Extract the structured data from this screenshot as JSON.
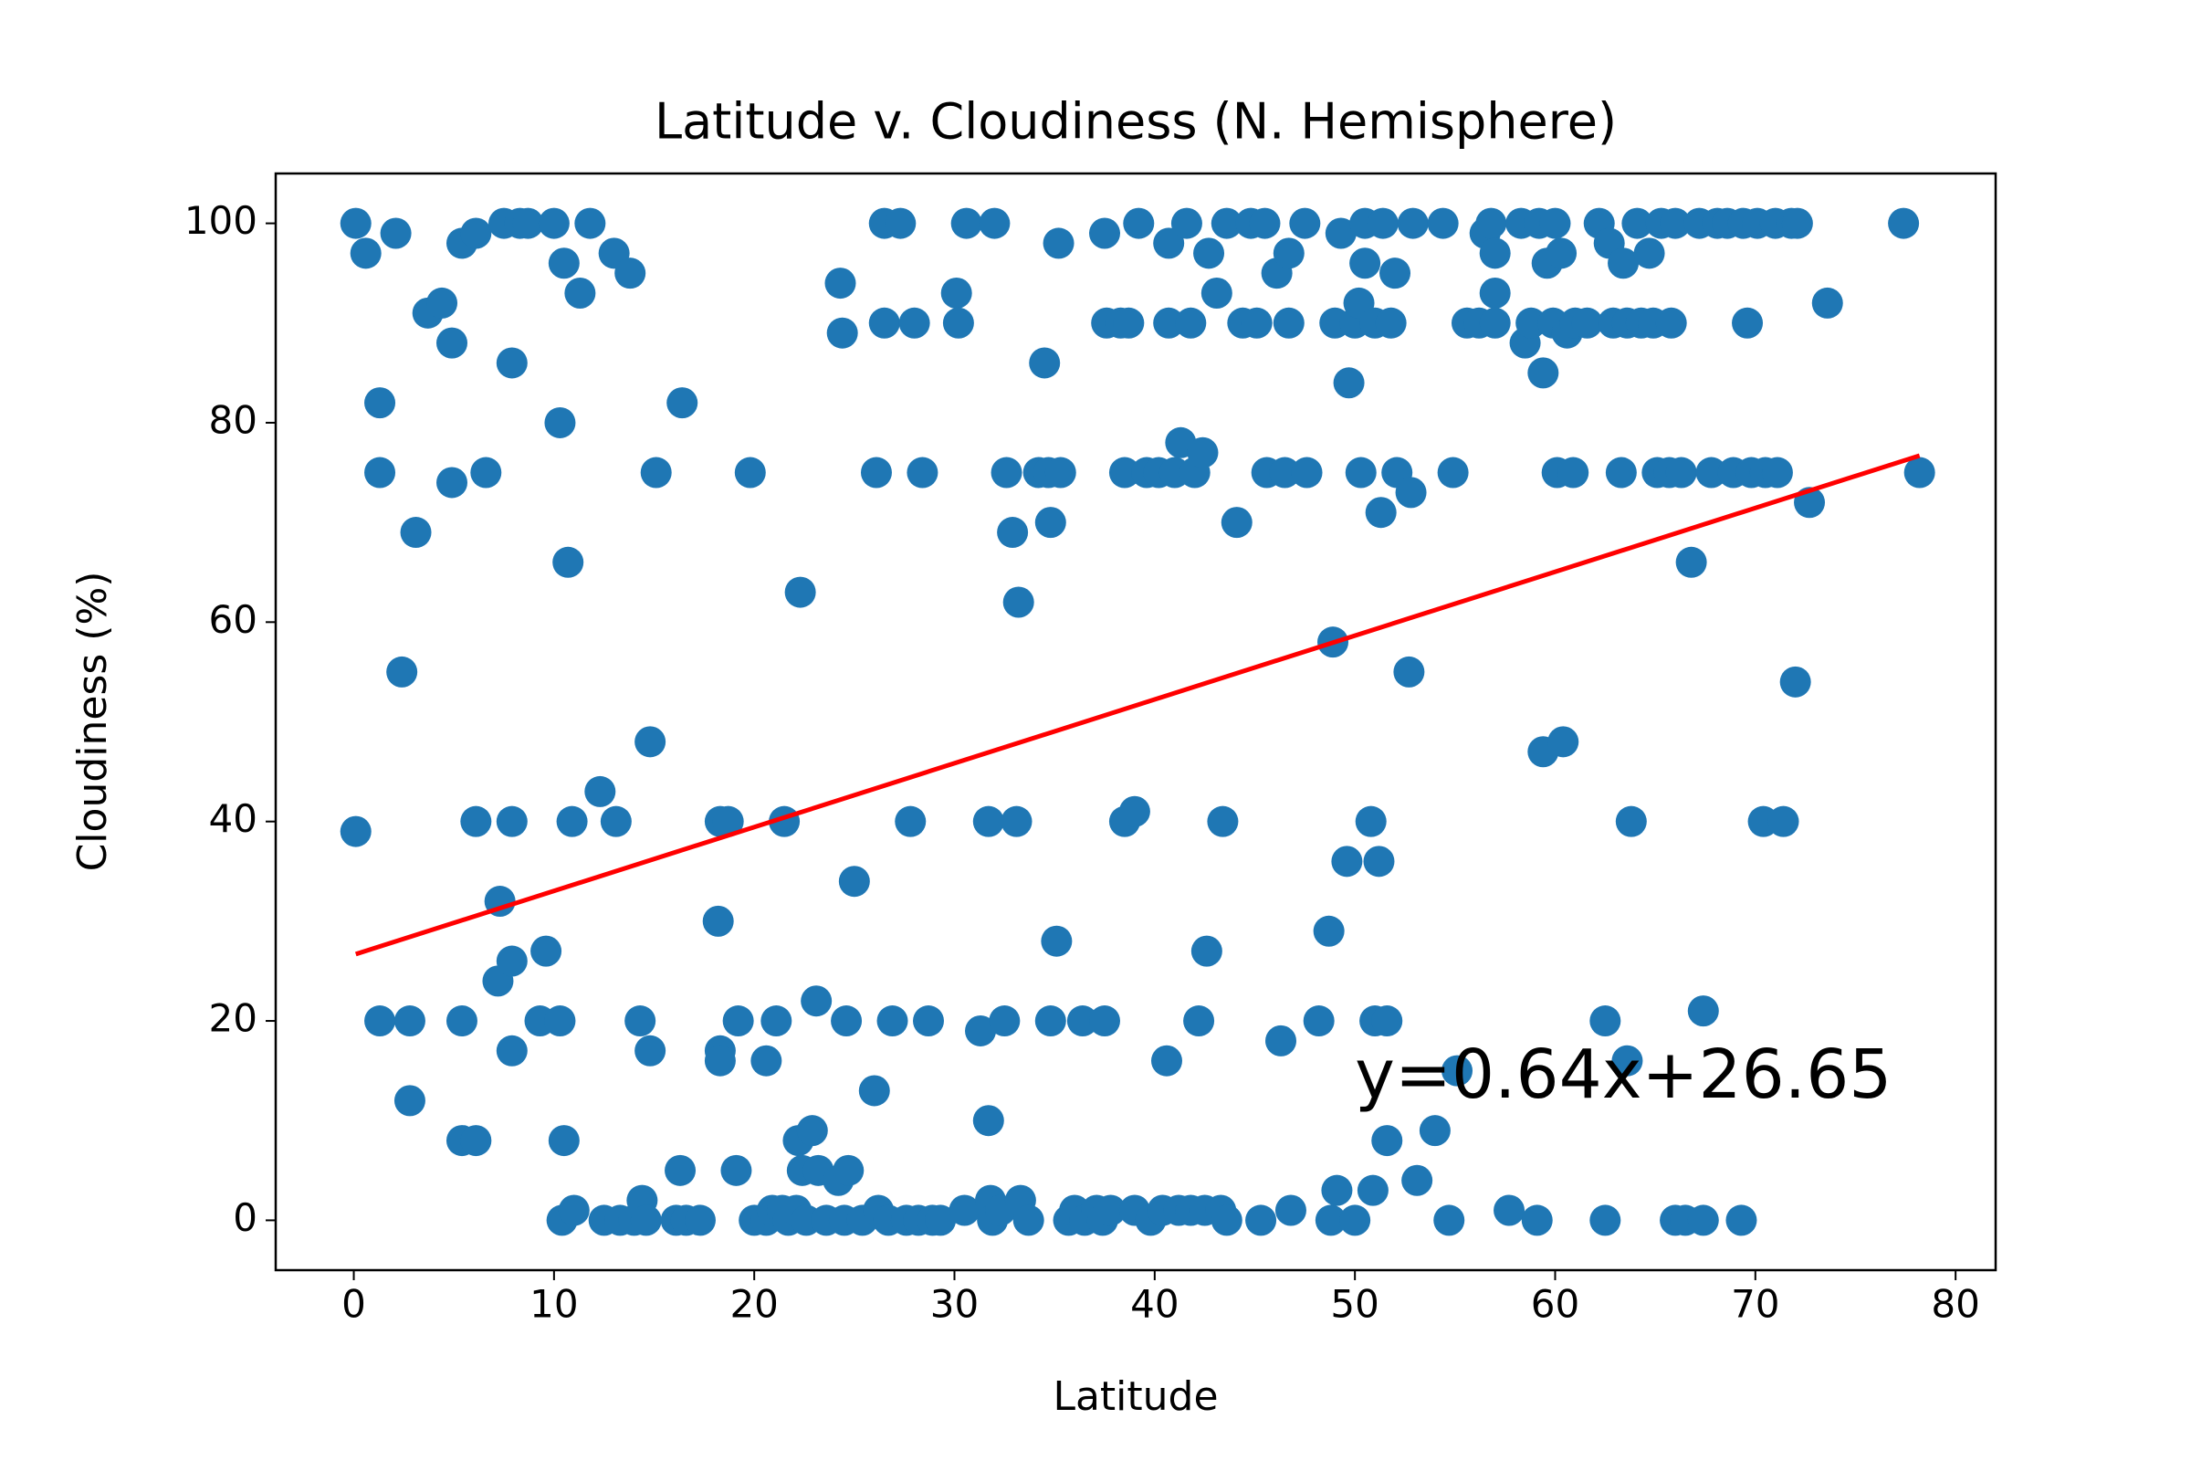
{
  "chart_data": {
    "type": "scatter",
    "title": "Latitude v. Cloudiness (N. Hemisphere)",
    "xlabel": "Latitude",
    "ylabel": "Cloudiness (%)",
    "annotation": "y=0.64x+26.65",
    "annotation_color": "red",
    "xlim": [
      -3.9,
      82
    ],
    "ylim": [
      -5,
      105
    ],
    "xticks": [
      0,
      10,
      20,
      30,
      40,
      50,
      60,
      70,
      80
    ],
    "yticks": [
      0,
      20,
      40,
      60,
      80,
      100
    ],
    "grid": false,
    "series": [
      {
        "type": "scatter",
        "color": "#1f77b4",
        "x": [
          0.1,
          0.1,
          0.6,
          1.3,
          1.3,
          1.3,
          2.1,
          2.4,
          2.8,
          2.8,
          3.1,
          3.7,
          4.4,
          4.9,
          4.9,
          5.4,
          5.4,
          5.4,
          6.1,
          6.1,
          6.1,
          6.6,
          7.2,
          7.3,
          7.5,
          7.9,
          7.9,
          7.9,
          7.9,
          8.3,
          8.7,
          9.3,
          9.6,
          10,
          10.3,
          10.3,
          10.4,
          10.5,
          10.5,
          10.7,
          10.9,
          11.0,
          11.3,
          11.8,
          12.3,
          12.5,
          13,
          13.1,
          13.3,
          13.8,
          14,
          14.3,
          14.4,
          14.6,
          14.8,
          14.8,
          15.1,
          16.1,
          16.3,
          16.4,
          16.6,
          17.3,
          18.2,
          18.3,
          18.3,
          18.3,
          18.7,
          19.1,
          19.2,
          19.8,
          20.0,
          20.6,
          20.6,
          20.9,
          21.1,
          21.4,
          21.5,
          21.7,
          22.1,
          22.2,
          22.3,
          22.4,
          22.6,
          22.9,
          23.1,
          23.2,
          23.6,
          24.2,
          24.3,
          24.4,
          24.5,
          24.6,
          24.7,
          25,
          25.4,
          26,
          26.1,
          26.2,
          26.5,
          26.5,
          26.7,
          26.9,
          27.3,
          27.6,
          27.8,
          28.0,
          28.2,
          28.4,
          28.7,
          28.9,
          29.3,
          30.1,
          30.2,
          30.5,
          30.6,
          31.3,
          31.7,
          31.7,
          31.8,
          31.9,
          32,
          32.3,
          32.5,
          32.6,
          32.9,
          33.1,
          33.2,
          33.3,
          33.7,
          34.2,
          34.5,
          34.7,
          34.8,
          34.8,
          35.1,
          35.2,
          35.3,
          35.7,
          36.0,
          36.4,
          36.5,
          37.1,
          37.4,
          37.5,
          37.5,
          37.6,
          37.8,
          38.3,
          38.5,
          38.5,
          38.7,
          39.0,
          39.0,
          39.2,
          39.6,
          39.8,
          40.2,
          40.4,
          40.6,
          40.7,
          40.7,
          41.0,
          41.2,
          41.3,
          41.6,
          41.8,
          41.8,
          42.0,
          42.2,
          42.4,
          42.6,
          42.5,
          42.7,
          43.1,
          43.3,
          43.4,
          43.6,
          43.6,
          44.1,
          44.4,
          44.8,
          45.1,
          45.3,
          45.5,
          45.6,
          46.1,
          46.3,
          46.5,
          46.7,
          46.7,
          46.8,
          47.5,
          47.6,
          48.2,
          48.7,
          48.8,
          48.9,
          49.0,
          49.1,
          49.3,
          49.6,
          49.7,
          50.0,
          50,
          50.2,
          50.3,
          50.5,
          50.5,
          50.8,
          50.9,
          51.0,
          51.0,
          51.2,
          51.3,
          51.4,
          51.6,
          51.6,
          51.8,
          52.0,
          52.1,
          52.7,
          52.8,
          52.9,
          53.1,
          54.0,
          54.4,
          54.7,
          54.9,
          55.1,
          55.6,
          56.2,
          56.5,
          56.8,
          57.0,
          57.0,
          57.0,
          57.7,
          58.3,
          58.5,
          58.8,
          59.1,
          59.2,
          59.4,
          59.4,
          59.6,
          59.9,
          60.0,
          60.1,
          60.3,
          60.4,
          60.6,
          60.9,
          61.0,
          61.6,
          62.2,
          62.5,
          62.7,
          62.5,
          62.9,
          63.3,
          63.4,
          63.6,
          63.6,
          63.8,
          64.1,
          64.3,
          64.7,
          64.9,
          65.1,
          65.3,
          65.7,
          65.8,
          66.0,
          66.0,
          66.3,
          66.5,
          66.8,
          67.2,
          67.4,
          67.4,
          67.8,
          68.1,
          68.6,
          68.9,
          69.3,
          69.6,
          69.4,
          69.8,
          70.1,
          70.4,
          70.5,
          71.0,
          71.1,
          71.4,
          71.8,
          72.0,
          72.1,
          72.7,
          73.6,
          77.4,
          78.2
        ],
        "values": [
          100,
          39,
          97,
          82,
          75,
          20,
          99,
          55,
          20,
          12,
          69,
          91,
          92,
          88,
          74,
          98,
          20,
          8,
          99,
          40,
          8,
          75,
          24,
          32,
          100,
          86,
          40,
          26,
          17,
          100,
          100,
          20,
          27,
          100,
          80,
          20,
          0,
          96,
          8,
          66,
          40,
          1,
          93,
          100,
          43,
          0,
          97,
          40,
          0,
          95,
          0,
          20,
          2,
          0,
          48,
          17,
          75,
          0,
          5,
          82,
          0,
          0,
          30,
          40,
          17,
          16,
          40,
          5,
          20,
          75,
          0,
          16,
          0,
          1,
          20,
          1,
          40,
          0,
          1,
          8,
          63,
          5,
          0,
          9,
          22,
          5,
          0,
          4,
          94,
          89,
          0,
          20,
          5,
          34,
          0,
          13,
          75,
          1,
          90,
          100,
          0,
          20,
          100,
          0,
          40,
          90,
          0,
          75,
          20,
          0,
          0,
          93,
          90,
          1,
          100,
          19,
          10,
          40,
          2,
          0,
          100,
          1,
          20,
          75,
          69,
          40,
          62,
          2,
          0,
          75,
          86,
          75,
          70,
          20,
          28,
          98,
          75,
          0,
          1,
          20,
          0,
          1,
          0,
          20,
          99,
          90,
          1,
          90,
          75,
          40,
          90,
          41,
          1,
          100,
          75,
          0,
          75,
          1,
          16,
          90,
          98,
          75,
          1,
          78,
          100,
          90,
          1,
          75,
          20,
          77,
          27,
          1,
          97,
          93,
          1,
          40,
          0,
          100,
          70,
          90,
          100,
          90,
          0,
          100,
          75,
          95,
          18,
          75,
          97,
          90,
          1,
          100,
          75,
          20,
          29,
          0,
          58,
          90,
          3,
          99,
          36,
          84,
          0,
          90,
          92,
          75,
          96,
          100,
          40,
          3,
          90,
          20,
          36,
          71,
          100,
          8,
          20,
          90,
          95,
          75,
          55,
          73,
          100,
          4,
          9,
          100,
          0,
          75,
          15,
          90,
          90,
          99,
          100,
          97,
          93,
          90,
          1,
          100,
          88,
          90,
          0,
          100,
          85,
          47,
          96,
          90,
          100,
          75,
          97,
          48,
          89,
          75,
          90,
          90,
          100,
          20,
          98,
          0,
          90,
          75,
          96,
          16,
          90,
          40,
          100,
          90,
          97,
          90,
          75,
          100,
          75,
          90,
          0,
          100,
          75,
          0,
          66,
          100,
          21,
          0,
          75,
          100,
          100,
          75,
          0,
          90,
          100,
          75,
          100,
          40,
          75,
          100,
          75,
          40,
          100,
          54,
          100,
          72,
          92,
          100,
          75
        ]
      },
      {
        "type": "line",
        "color": "red",
        "x": [
          0.1,
          78.2
        ],
        "values": [
          26.7,
          76.7
        ]
      }
    ]
  }
}
